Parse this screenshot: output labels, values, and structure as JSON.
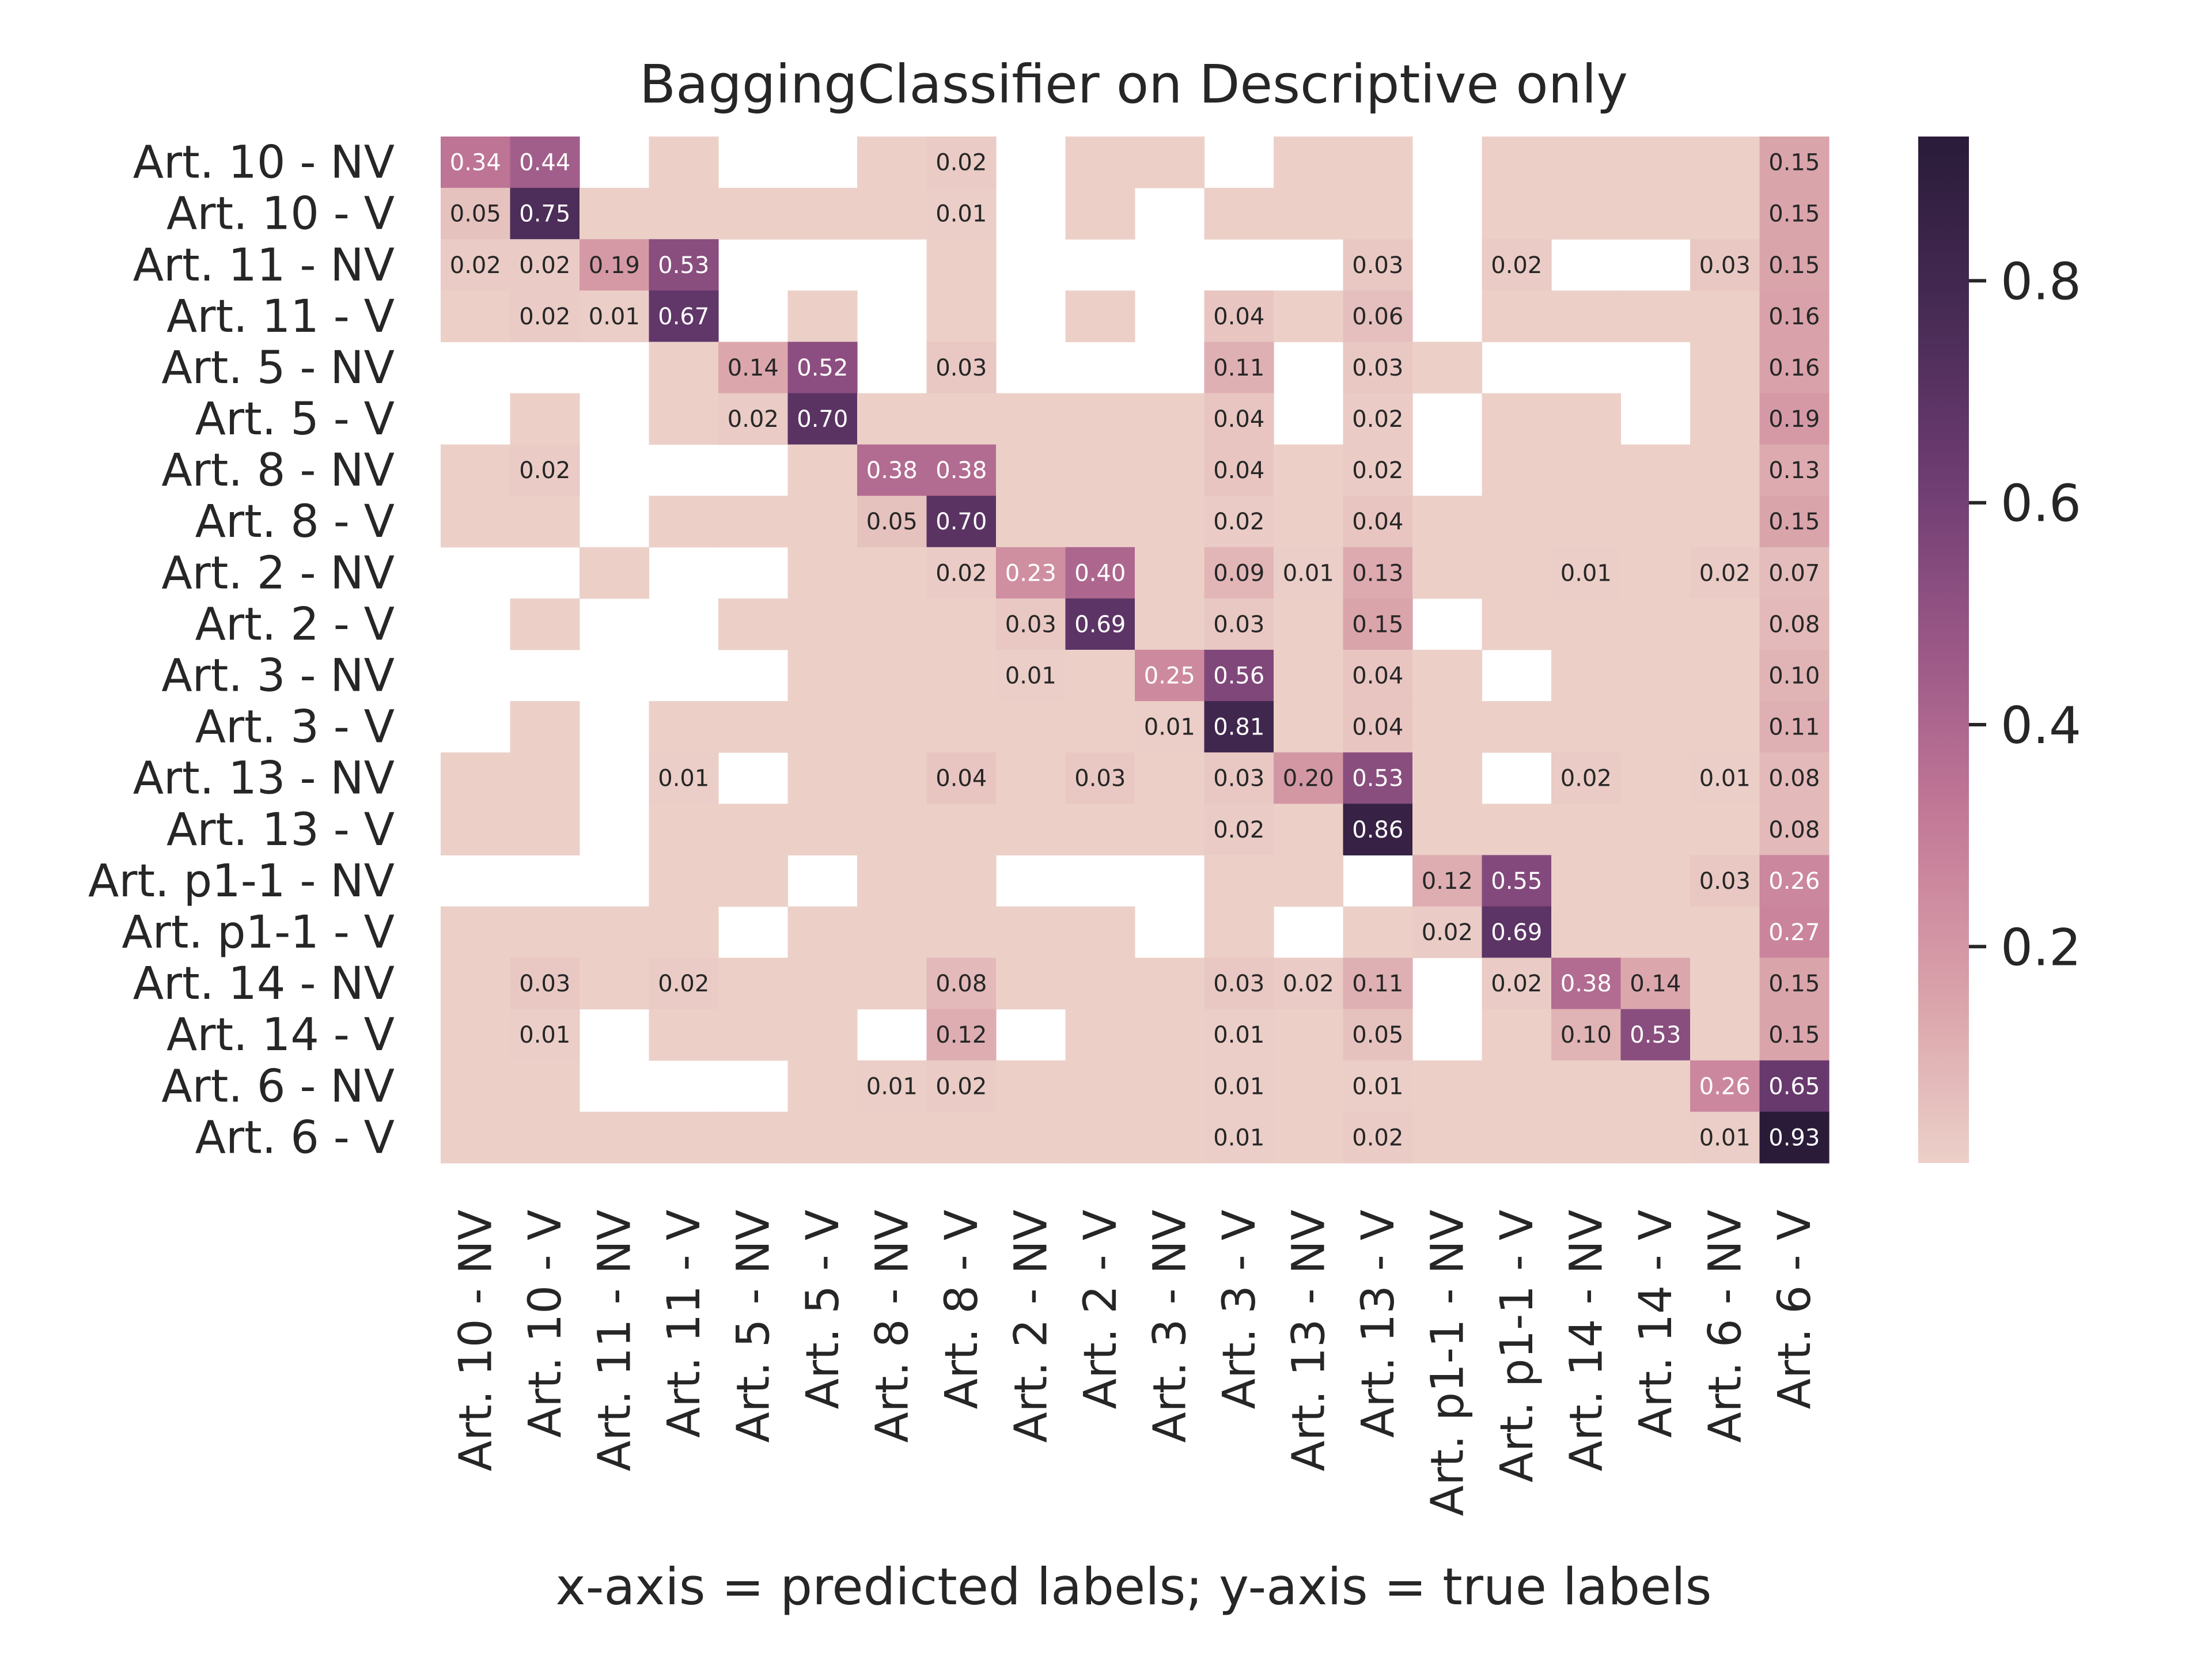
{
  "chart_data": {
    "type": "heatmap",
    "title": "BaggingClassifier on Descriptive only",
    "xlabel": "x-axis = predicted labels; y-axis = true labels",
    "ylabel": "",
    "categories": [
      "Art. 10 - NV",
      "Art. 10 - V",
      "Art. 11 - NV",
      "Art. 11 - V",
      "Art. 5 - NV",
      "Art. 5 - V",
      "Art. 8 - NV",
      "Art. 8 - V",
      "Art. 2 - NV",
      "Art. 2 - V",
      "Art. 3 - NV",
      "Art. 3 - V",
      "Art. 13 - NV",
      "Art. 13 - V",
      "Art. p1-1 - NV",
      "Art. p1-1 - V",
      "Art. 14 - NV",
      "Art. 14 - V",
      "Art. 6 - NV",
      "Art. 6 - V"
    ],
    "values": [
      [
        0.34,
        0.44,
        null,
        0.005,
        null,
        null,
        0.005,
        0.02,
        null,
        0.005,
        0.005,
        null,
        0.005,
        0.005,
        null,
        0.005,
        0.005,
        0.005,
        0.005,
        0.15
      ],
      [
        0.05,
        0.75,
        0.005,
        0.005,
        0.005,
        0.005,
        0.005,
        0.01,
        null,
        0.005,
        null,
        0.005,
        0.005,
        0.005,
        null,
        0.005,
        0.005,
        0.005,
        0.005,
        0.15
      ],
      [
        0.02,
        0.02,
        0.19,
        0.53,
        null,
        null,
        null,
        0.005,
        null,
        null,
        null,
        null,
        null,
        0.03,
        null,
        0.02,
        null,
        null,
        0.03,
        0.15
      ],
      [
        0.005,
        0.02,
        0.01,
        0.67,
        null,
        0.005,
        null,
        0.005,
        null,
        0.005,
        null,
        0.04,
        0.005,
        0.06,
        null,
        0.005,
        0.005,
        0.005,
        0.005,
        0.16
      ],
      [
        null,
        null,
        null,
        0.005,
        0.14,
        0.52,
        null,
        0.03,
        null,
        null,
        null,
        0.11,
        null,
        0.03,
        0.005,
        null,
        null,
        null,
        0.005,
        0.16
      ],
      [
        null,
        0.005,
        null,
        0.005,
        0.02,
        0.7,
        0.005,
        0.005,
        0.005,
        0.005,
        0.005,
        0.04,
        null,
        0.02,
        null,
        0.005,
        0.005,
        null,
        0.005,
        0.19
      ],
      [
        0.005,
        0.02,
        null,
        null,
        null,
        0.005,
        0.38,
        0.38,
        0.005,
        0.005,
        0.005,
        0.04,
        0.005,
        0.02,
        null,
        0.005,
        0.005,
        0.005,
        0.005,
        0.13
      ],
      [
        0.005,
        0.005,
        null,
        0.005,
        0.005,
        0.005,
        0.05,
        0.7,
        0.005,
        0.005,
        0.005,
        0.02,
        0.005,
        0.04,
        0.005,
        0.005,
        0.005,
        0.005,
        0.005,
        0.15
      ],
      [
        null,
        null,
        0.005,
        null,
        null,
        0.005,
        0.005,
        0.02,
        0.23,
        0.4,
        0.005,
        0.09,
        0.01,
        0.13,
        0.005,
        0.005,
        0.01,
        0.005,
        0.02,
        0.07
      ],
      [
        null,
        0.005,
        null,
        null,
        0.005,
        0.005,
        0.005,
        0.005,
        0.03,
        0.69,
        0.005,
        0.03,
        0.005,
        0.15,
        null,
        0.005,
        0.005,
        0.005,
        0.005,
        0.08
      ],
      [
        null,
        null,
        null,
        null,
        null,
        0.005,
        0.005,
        0.005,
        0.01,
        0.005,
        0.25,
        0.56,
        0.005,
        0.04,
        0.005,
        null,
        0.005,
        0.005,
        0.005,
        0.1
      ],
      [
        null,
        0.005,
        null,
        0.005,
        0.005,
        0.005,
        0.005,
        0.005,
        0.005,
        0.005,
        0.01,
        0.81,
        0.005,
        0.04,
        0.005,
        0.005,
        0.005,
        0.005,
        0.005,
        0.11
      ],
      [
        0.005,
        0.005,
        null,
        0.01,
        null,
        0.005,
        0.005,
        0.04,
        0.005,
        0.03,
        0.005,
        0.03,
        0.2,
        0.53,
        0.005,
        null,
        0.02,
        0.005,
        0.01,
        0.08
      ],
      [
        0.005,
        0.005,
        null,
        0.005,
        0.005,
        0.005,
        0.005,
        0.005,
        0.005,
        0.005,
        0.005,
        0.02,
        0.005,
        0.86,
        0.005,
        0.005,
        0.005,
        0.005,
        0.005,
        0.08
      ],
      [
        null,
        null,
        null,
        0.005,
        0.005,
        null,
        0.005,
        0.005,
        null,
        null,
        null,
        0.005,
        0.005,
        null,
        0.12,
        0.55,
        0.005,
        0.005,
        0.03,
        0.26
      ],
      [
        0.005,
        0.005,
        0.005,
        0.005,
        null,
        0.005,
        0.005,
        0.005,
        0.005,
        0.005,
        null,
        0.005,
        null,
        0.005,
        0.02,
        0.69,
        0.005,
        0.005,
        0.005,
        0.27
      ],
      [
        0.005,
        0.03,
        0.005,
        0.02,
        0.005,
        0.005,
        0.005,
        0.08,
        0.005,
        0.005,
        0.005,
        0.03,
        0.02,
        0.11,
        null,
        0.02,
        0.38,
        0.14,
        0.005,
        0.15
      ],
      [
        0.005,
        0.01,
        null,
        0.005,
        0.005,
        0.005,
        null,
        0.12,
        null,
        0.005,
        0.005,
        0.01,
        0.005,
        0.05,
        null,
        0.005,
        0.1,
        0.53,
        0.005,
        0.15
      ],
      [
        0.005,
        0.005,
        null,
        null,
        null,
        0.005,
        0.01,
        0.02,
        0.005,
        0.005,
        0.005,
        0.01,
        0.005,
        0.01,
        0.005,
        0.005,
        0.005,
        0.005,
        0.26,
        0.65
      ],
      [
        0.005,
        0.005,
        0.005,
        0.005,
        0.005,
        0.005,
        0.005,
        0.005,
        0.005,
        0.005,
        0.005,
        0.01,
        0.005,
        0.02,
        0.005,
        0.005,
        0.005,
        0.005,
        0.01,
        0.93
      ]
    ],
    "label_min": 0.01,
    "vmin": 0.005,
    "vmax": 0.93,
    "colorbar_ticks": [
      0.2,
      0.4,
      0.6,
      0.8
    ],
    "colorbar_tick_labels": [
      "0.2",
      "0.4",
      "0.6",
      "0.8"
    ],
    "colormap": [
      "#ecd0c8",
      "#d9a1a9",
      "#c47a98",
      "#9b5887",
      "#6e3c72",
      "#462a54",
      "#2a1b39"
    ],
    "grid": false,
    "legend": "colorbar-right"
  }
}
